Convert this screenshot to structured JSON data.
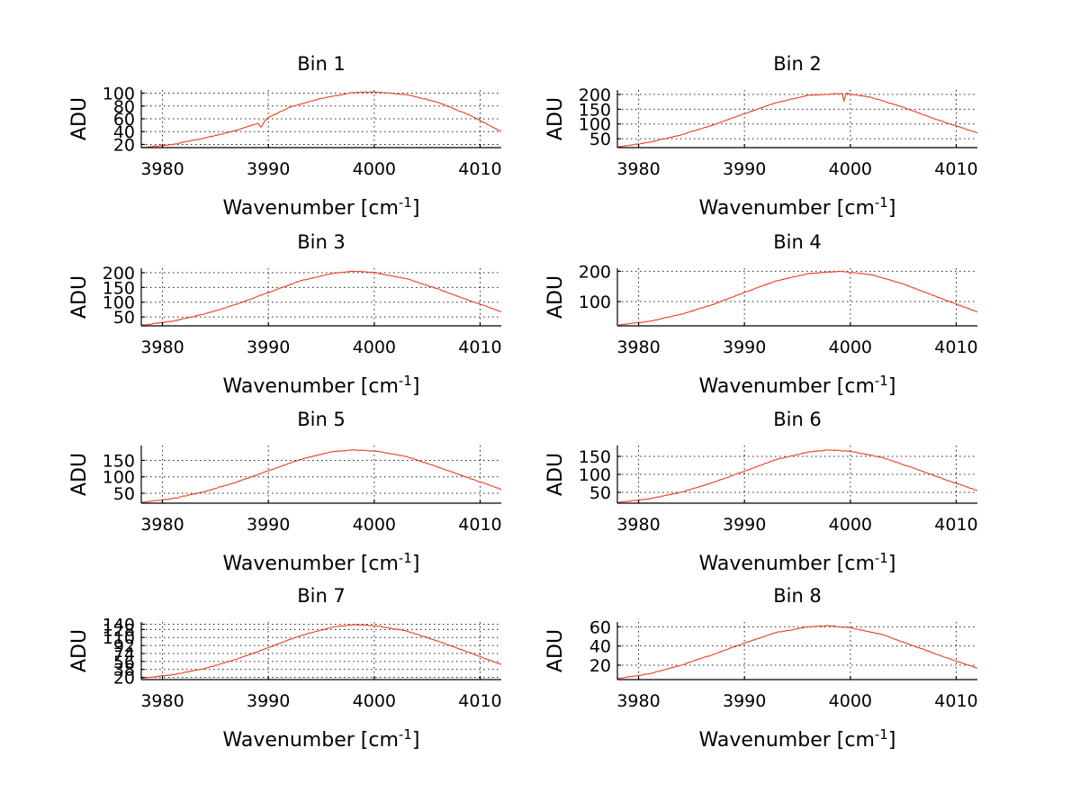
{
  "figure": {
    "background": "#ffffff",
    "line_color": "#e8401c"
  },
  "chart_data": [
    {
      "type": "line",
      "title": "Bin 1",
      "xlabel": "Wavenumber [cm",
      "xlabel_sup": "-1",
      "xlabel_end": "]",
      "ylabel": "ADU",
      "xlim": [
        3978,
        4012
      ],
      "ylim": [
        15,
        105
      ],
      "xticks": [
        3980,
        3990,
        4000,
        4010
      ],
      "yticks": [
        20,
        40,
        60,
        80,
        100
      ],
      "grid": true,
      "series": [
        {
          "name": "Bin 1",
          "color": "#e8401c",
          "x": [
            3978,
            3981,
            3984,
            3987,
            3989,
            3989.3,
            3989.6,
            3990,
            3992,
            3995,
            3998,
            4000,
            4003,
            4006,
            4009,
            4012
          ],
          "y": [
            15,
            20,
            30,
            42,
            53,
            47,
            55,
            62,
            78,
            92,
            101,
            102,
            98,
            86,
            66,
            40
          ]
        }
      ]
    },
    {
      "type": "line",
      "title": "Bin 2",
      "xlabel": "Wavenumber [cm",
      "xlabel_sup": "-1",
      "xlabel_end": "]",
      "ylabel": "ADU",
      "xlim": [
        3978,
        4012
      ],
      "ylim": [
        20,
        215
      ],
      "xticks": [
        3980,
        3990,
        4000,
        4010
      ],
      "yticks": [
        50,
        100,
        150,
        200
      ],
      "grid": true,
      "series": [
        {
          "name": "Bin 2",
          "color": "#e8401c",
          "x": [
            3978,
            3981,
            3984,
            3987,
            3990,
            3993,
            3996,
            3999.2,
            3999.4,
            3999.6,
            4002,
            4005,
            4008,
            4012
          ],
          "y": [
            22,
            38,
            63,
            96,
            135,
            172,
            197,
            203,
            178,
            204,
            190,
            157,
            117,
            70
          ]
        }
      ]
    },
    {
      "type": "line",
      "title": "Bin 3",
      "xlabel": "Wavenumber [cm",
      "xlabel_sup": "-1",
      "xlabel_end": "]",
      "ylabel": "ADU",
      "xlim": [
        3978,
        4012
      ],
      "ylim": [
        20,
        215
      ],
      "xticks": [
        3980,
        3990,
        4000,
        4010
      ],
      "yticks": [
        50,
        100,
        150,
        200
      ],
      "grid": true,
      "series": [
        {
          "name": "Bin 3",
          "color": "#e8401c",
          "x": [
            3978,
            3981,
            3984,
            3987,
            3990,
            3993,
            3996,
            3998,
            4000,
            4003,
            4006,
            4009,
            4012
          ],
          "y": [
            22,
            36,
            60,
            93,
            133,
            172,
            197,
            205,
            201,
            180,
            145,
            106,
            68
          ]
        }
      ]
    },
    {
      "type": "line",
      "title": "Bin 4",
      "xlabel": "Wavenumber [cm",
      "xlabel_sup": "-1",
      "xlabel_end": "]",
      "ylabel": "ADU",
      "xlim": [
        3978,
        4012
      ],
      "ylim": [
        20,
        210
      ],
      "xticks": [
        3980,
        3990,
        4000,
        4010
      ],
      "yticks": [
        100,
        200
      ],
      "grid": true,
      "series": [
        {
          "name": "Bin 4",
          "color": "#e8401c",
          "x": [
            3978,
            3981,
            3984,
            3987,
            3990,
            3993,
            3996,
            3999,
            4002,
            4005,
            4008,
            4012
          ],
          "y": [
            22,
            35,
            58,
            90,
            130,
            168,
            192,
            200,
            189,
            158,
            118,
            66
          ]
        }
      ]
    },
    {
      "type": "line",
      "title": "Bin 5",
      "xlabel": "Wavenumber [cm",
      "xlabel_sup": "-1",
      "xlabel_end": "]",
      "ylabel": "ADU",
      "xlim": [
        3978,
        4012
      ],
      "ylim": [
        20,
        195
      ],
      "xticks": [
        3980,
        3990,
        4000,
        4010
      ],
      "yticks": [
        50,
        100,
        150
      ],
      "grid": true,
      "series": [
        {
          "name": "Bin 5",
          "color": "#e8401c",
          "x": [
            3978,
            3981,
            3984,
            3987,
            3990,
            3993,
            3996,
            3998,
            4000,
            4003,
            4006,
            4009,
            4012
          ],
          "y": [
            22,
            34,
            55,
            84,
            118,
            153,
            176,
            182,
            179,
            162,
            130,
            96,
            62
          ]
        }
      ]
    },
    {
      "type": "line",
      "title": "Bin 6",
      "xlabel": "Wavenumber [cm",
      "xlabel_sup": "-1",
      "xlabel_end": "]",
      "ylabel": "ADU",
      "xlim": [
        3978,
        4012
      ],
      "ylim": [
        20,
        180
      ],
      "xticks": [
        3980,
        3990,
        4000,
        4010
      ],
      "yticks": [
        50,
        100,
        150
      ],
      "grid": true,
      "series": [
        {
          "name": "Bin 6",
          "color": "#e8401c",
          "x": [
            3978,
            3981,
            3984,
            3987,
            3990,
            3993,
            3996,
            3998,
            4000,
            4003,
            4006,
            4009,
            4012
          ],
          "y": [
            22,
            32,
            50,
            77,
            109,
            141,
            162,
            168,
            164,
            147,
            117,
            85,
            55
          ]
        }
      ]
    },
    {
      "type": "line",
      "title": "Bin 7",
      "xlabel": "Wavenumber [cm",
      "xlabel_sup": "-1",
      "xlabel_end": "]",
      "ylabel": "ADU",
      "xlim": [
        3978,
        4012
      ],
      "ylim": [
        15,
        145
      ],
      "xticks": [
        3980,
        3990,
        4000,
        4010
      ],
      "yticks": [
        20,
        38,
        56,
        74,
        92,
        110,
        128,
        140
      ],
      "ytick_labels": [
        "20",
        "38",
        "56",
        "74",
        "92",
        "110",
        "128",
        "140"
      ],
      "grid": true,
      "series": [
        {
          "name": "Bin 7",
          "color": "#e8401c",
          "x": [
            3978,
            3981,
            3984,
            3987,
            3990,
            3993,
            3996,
            3998,
            4000,
            4003,
            4006,
            4009,
            4012
          ],
          "y": [
            18,
            26,
            40,
            61,
            87,
            114,
            133,
            139,
            137,
            125,
            102,
            76,
            49
          ]
        }
      ]
    },
    {
      "type": "line",
      "title": "Bin 8",
      "xlabel": "Wavenumber [cm",
      "xlabel_sup": "-1",
      "xlabel_end": "]",
      "ylabel": "ADU",
      "xlim": [
        3978,
        4012
      ],
      "ylim": [
        5,
        65
      ],
      "xticks": [
        3980,
        3990,
        4000,
        4010
      ],
      "yticks": [
        20,
        40,
        60
      ],
      "grid": true,
      "series": [
        {
          "name": "Bin 8",
          "color": "#e8401c",
          "x": [
            3978,
            3981,
            3984,
            3987,
            3990,
            3993,
            3996,
            3998,
            4000,
            4003,
            4006,
            4009,
            4012
          ],
          "y": [
            6,
            11,
            20,
            31,
            43,
            54,
            60,
            61,
            59,
            52,
            40,
            28,
            17
          ]
        }
      ]
    }
  ]
}
